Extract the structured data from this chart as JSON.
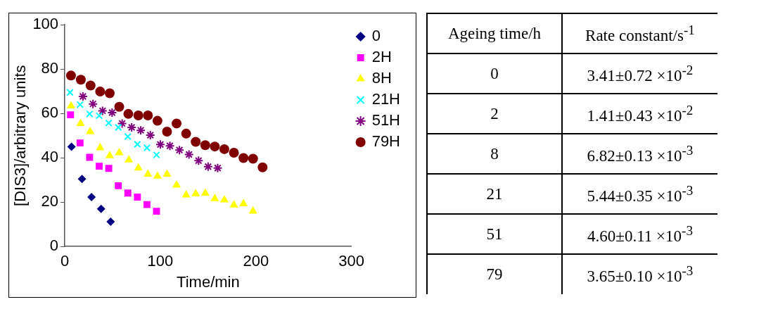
{
  "chart_data": [
    {
      "type": "scatter",
      "xlabel": "Time/min",
      "ylabel": "[DIS3]/arbitrary units",
      "xlim": [
        0,
        300
      ],
      "xticks": [
        0,
        100,
        200,
        300
      ],
      "ylim": [
        0,
        100
      ],
      "yticks": [
        0,
        20,
        40,
        60,
        80,
        100
      ],
      "grid": false,
      "legend": "top right",
      "series": [
        {
          "name": "0",
          "color": "#000080",
          "marker": "diamond",
          "x": [
            7,
            18,
            28,
            38,
            48
          ],
          "values": [
            45,
            30.5,
            22.3,
            17,
            11.2
          ]
        },
        {
          "name": "2H",
          "color": "#ff00ff",
          "marker": "square",
          "x": [
            6,
            16,
            26,
            36,
            46,
            56,
            66,
            76,
            86,
            96
          ],
          "values": [
            59.4,
            46.7,
            40.2,
            36.2,
            35.2,
            27.4,
            24.1,
            22.3,
            18.9,
            15.9
          ]
        },
        {
          "name": "8H",
          "color": "#ffff00",
          "marker": "triangle",
          "x": [
            6.5,
            16.5,
            26.5,
            37,
            47,
            57,
            67,
            77,
            87,
            97,
            107,
            117,
            127,
            137,
            147,
            157,
            167,
            177,
            187,
            197
          ],
          "values": [
            63.4,
            55.5,
            51.8,
            44.5,
            40.9,
            42.3,
            39,
            35.4,
            32.6,
            31.7,
            32.6,
            27.7,
            23.2,
            23.8,
            24,
            21.6,
            21,
            18.7,
            19.3,
            15.9
          ]
        },
        {
          "name": "21H",
          "color": "#00ffff",
          "marker": "cross",
          "x": [
            5.5,
            16,
            26,
            36,
            46,
            56,
            66,
            76,
            86,
            96
          ],
          "values": [
            69.5,
            64,
            59.8,
            59,
            55.7,
            53.7,
            49.6,
            46.1,
            44.5,
            41.3
          ]
        },
        {
          "name": "51H",
          "color": "#800080",
          "x": [
            19,
            29.5,
            39.5,
            49.5,
            60,
            70,
            79.5,
            89.5,
            100,
            110,
            120,
            130,
            140,
            150,
            160
          ],
          "values": [
            67.7,
            64.3,
            61.2,
            60.4,
            55.5,
            53.7,
            52.4,
            50.2,
            46,
            45.4,
            43.5,
            41.5,
            38.7,
            36,
            35.4
          ]
        },
        {
          "name": "79H",
          "color": "#800000",
          "marker": "circle",
          "x": [
            6.5,
            16.8,
            27,
            37,
            47,
            57,
            66.5,
            77,
            87,
            97,
            107,
            117,
            127,
            137,
            147,
            157,
            167,
            177,
            187,
            197,
            207
          ],
          "values": [
            77.1,
            75.2,
            72.6,
            69.9,
            69.1,
            63,
            59.8,
            59.1,
            59.1,
            56.7,
            51.8,
            55.5,
            50.9,
            47.2,
            45.7,
            45.1,
            43.9,
            42.3,
            39.9,
            39.6,
            35.7
          ]
        }
      ]
    },
    {
      "type": "other",
      "annotations": [
        "Ageing time/h",
        "Rate constant/s$^{-1}$",
        "0",
        "3.41±0.72 ×10$^{-2}$",
        "2",
        "1.41±0.43 ×10$^{-2}$",
        "8",
        "6.82±0.13 ×10$^{-3}$",
        "21",
        "5.44±0.35 ×10$^{-3}$",
        "51",
        "4.60±0.11 ×10$^{-3}$",
        "79",
        "3.65±0.10 ×10$^{-3}$"
      ]
    }
  ]
}
